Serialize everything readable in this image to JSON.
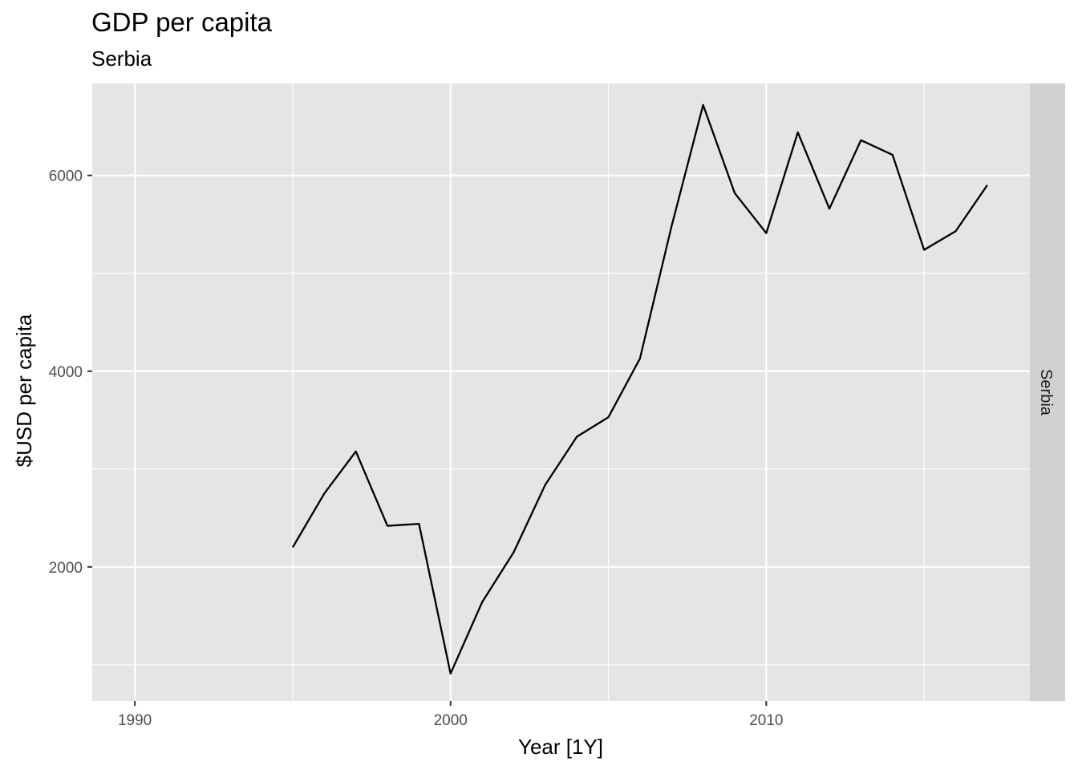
{
  "chart_data": {
    "type": "line",
    "title": "GDP per capita",
    "subtitle": "Serbia",
    "xlabel": "Year [1Y]",
    "ylabel": "$USD per capita",
    "facet_label": "Serbia",
    "xlim": [
      1988.65,
      2018.35
    ],
    "ylim": [
      630,
      6940
    ],
    "x_ticks": [
      1990,
      2000,
      2010
    ],
    "x_minor_ticks": [
      1995,
      2005,
      2015
    ],
    "y_ticks": [
      2000,
      4000,
      6000
    ],
    "y_minor_ticks": [
      1000,
      3000,
      5000
    ],
    "grid": true,
    "legend": "none",
    "colors": {
      "panel_background": "#e5e5e5",
      "grid": "#ffffff",
      "strip_background": "#d1d1d1",
      "line": "#000000"
    },
    "series": [
      {
        "x": [
          1995,
          1996,
          1997,
          1998,
          1999,
          2000,
          2001,
          2002,
          2003,
          2004,
          2005,
          2006,
          2007,
          2008,
          2009,
          2010,
          2011,
          2012,
          2013,
          2014,
          2015,
          2016,
          2017
        ],
        "values": [
          2200,
          2750,
          3180,
          2420,
          2440,
          910,
          1640,
          2150,
          2840,
          3330,
          3530,
          4130,
          5480,
          6720,
          5820,
          5410,
          6440,
          5660,
          6360,
          6210,
          5240,
          5430,
          5900
        ]
      }
    ]
  }
}
